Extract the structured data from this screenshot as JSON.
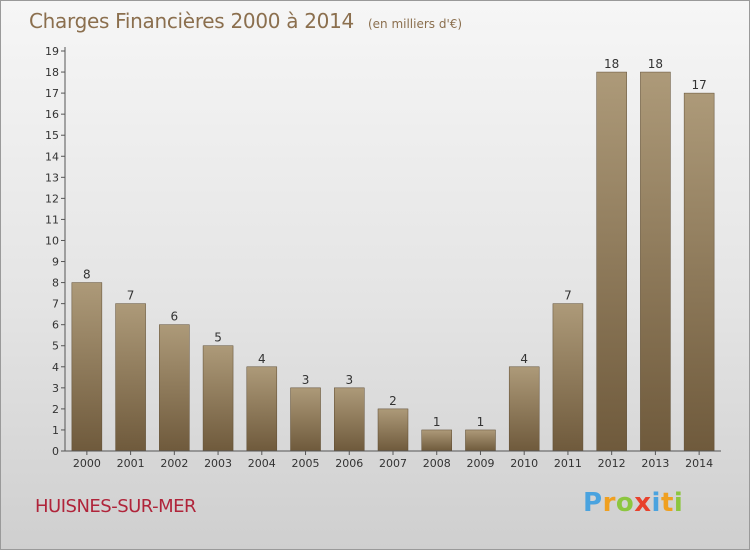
{
  "title": "Charges Financières 2000 à 2014",
  "subtitle": "(en milliers d'€)",
  "commune": "HUISNES-SUR-MER",
  "brand": {
    "letters": [
      "P",
      "r",
      "o",
      "x",
      "i",
      "t",
      "i"
    ],
    "colors": [
      "#4aa3df",
      "#f0a020",
      "#8cc63f",
      "#e8412c",
      "#4aa3df",
      "#f0a020",
      "#8cc63f"
    ]
  },
  "chart_data": {
    "type": "bar",
    "categories": [
      "2000",
      "2001",
      "2002",
      "2003",
      "2004",
      "2005",
      "2006",
      "2007",
      "2008",
      "2009",
      "2010",
      "2011",
      "2012",
      "2013",
      "2014"
    ],
    "values": [
      8,
      7,
      6,
      5,
      4,
      3,
      3,
      2,
      1,
      1,
      4,
      7,
      18,
      18,
      17
    ],
    "ylim": [
      0,
      19
    ],
    "yticks": [
      0,
      1,
      2,
      3,
      4,
      5,
      6,
      7,
      8,
      9,
      10,
      11,
      12,
      13,
      14,
      15,
      16,
      17,
      18,
      19
    ],
    "data_labels": true,
    "grid": false,
    "bar_color": "#8b7556"
  }
}
